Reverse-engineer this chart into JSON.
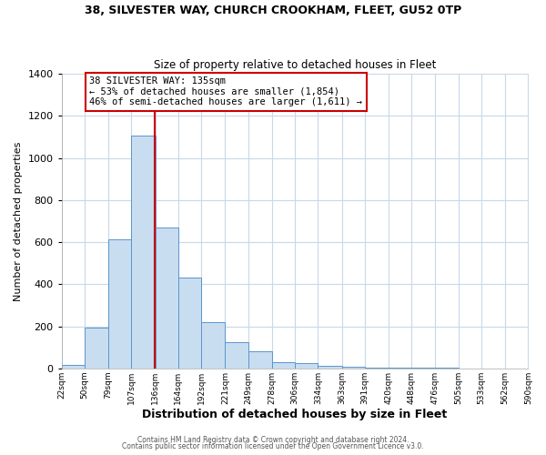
{
  "title1": "38, SILVESTER WAY, CHURCH CROOKHAM, FLEET, GU52 0TP",
  "title2": "Size of property relative to detached houses in Fleet",
  "xlabel": "Distribution of detached houses by size in Fleet",
  "ylabel": "Number of detached properties",
  "bin_edges": [
    22,
    50,
    79,
    107,
    136,
    164,
    192,
    221,
    249,
    278,
    306,
    334,
    363,
    391,
    420,
    448,
    476,
    505,
    533,
    562,
    590
  ],
  "bin_counts": [
    15,
    195,
    615,
    1105,
    670,
    430,
    220,
    125,
    80,
    30,
    25,
    10,
    7,
    5,
    4,
    3,
    2,
    1,
    1,
    1
  ],
  "bar_color": "#c9ddf0",
  "bar_edge_color": "#5a96cc",
  "property_size": 135,
  "vline_color": "#cc0000",
  "annotation_line1": "38 SILVESTER WAY: 135sqm",
  "annotation_line2": "← 53% of detached houses are smaller (1,854)",
  "annotation_line3": "46% of semi-detached houses are larger (1,611) →",
  "annotation_box_color": "#ffffff",
  "annotation_border_color": "#cc0000",
  "ylim": [
    0,
    1400
  ],
  "tick_labels": [
    "22sqm",
    "50sqm",
    "79sqm",
    "107sqm",
    "136sqm",
    "164sqm",
    "192sqm",
    "221sqm",
    "249sqm",
    "278sqm",
    "306sqm",
    "334sqm",
    "363sqm",
    "391sqm",
    "420sqm",
    "448sqm",
    "476sqm",
    "505sqm",
    "533sqm",
    "562sqm",
    "590sqm"
  ],
  "footer1": "Contains HM Land Registry data © Crown copyright and database right 2024.",
  "footer2": "Contains public sector information licensed under the Open Government Licence v3.0.",
  "bg_color": "#ffffff",
  "plot_bg_color": "#ffffff",
  "grid_color": "#c8d8ea"
}
